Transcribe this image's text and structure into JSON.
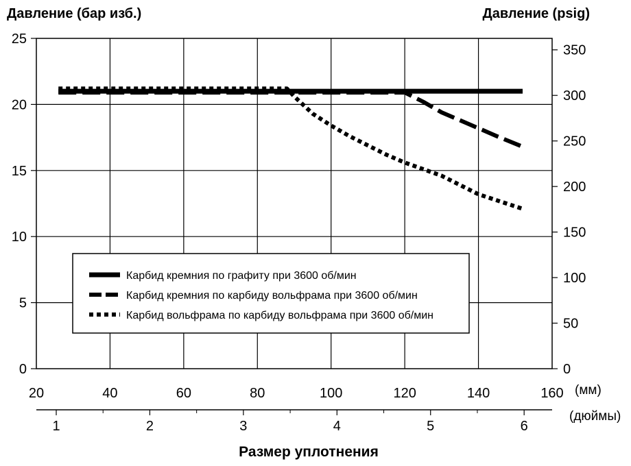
{
  "chart_data": {
    "type": "line",
    "left_axis_title": "Давление (бар изб.)",
    "right_axis_title": "Давление (psig)",
    "xlabel": "Размер уплотнения",
    "x_unit_mm": "(мм)",
    "x_unit_in": "(дюймы)",
    "x_ticks_mm": [
      "20",
      "40",
      "60",
      "80",
      "100",
      "120",
      "140",
      "160"
    ],
    "x_ticks_in": [
      "1",
      "2",
      "3",
      "4",
      "5",
      "6"
    ],
    "y_ticks_bar": [
      "0",
      "5",
      "10",
      "15",
      "20",
      "25"
    ],
    "y_ticks_psig": [
      "0",
      "50",
      "100",
      "150",
      "200",
      "250",
      "300",
      "350"
    ],
    "xlim_mm": [
      20,
      160
    ],
    "ylim_bar": [
      0,
      25
    ],
    "grid": true,
    "legend_position": "lower-center",
    "series": [
      {
        "name": "Карбид кремния по графиту при 3600 об/мин",
        "style": "solid",
        "x": [
          26,
          40,
          60,
          80,
          100,
          120,
          140,
          152
        ],
        "y": [
          21,
          21,
          21,
          21,
          21,
          21,
          21,
          21
        ]
      },
      {
        "name": "Карбид кремния по карбиду вольфрама при 3600 об/мин",
        "style": "dashed",
        "x": [
          26,
          40,
          60,
          80,
          100,
          120,
          125,
          130,
          135,
          140,
          145,
          152
        ],
        "y": [
          20.9,
          20.9,
          20.9,
          20.9,
          20.9,
          20.9,
          20.2,
          19.4,
          18.8,
          18.2,
          17.6,
          16.8
        ]
      },
      {
        "name": "Карбид вольфрама по карбиду вольфрама при 3600 об/мин",
        "style": "dotted",
        "x": [
          26,
          40,
          60,
          80,
          88,
          90,
          95,
          100,
          105,
          110,
          115,
          120,
          130,
          140,
          152
        ],
        "y": [
          21.2,
          21.2,
          21.2,
          21.2,
          21.2,
          20.6,
          19.3,
          18.4,
          17.6,
          16.9,
          16.2,
          15.6,
          14.6,
          13.2,
          12.1
        ]
      }
    ],
    "colors": {
      "lines": "#000000",
      "background": "#ffffff"
    }
  }
}
